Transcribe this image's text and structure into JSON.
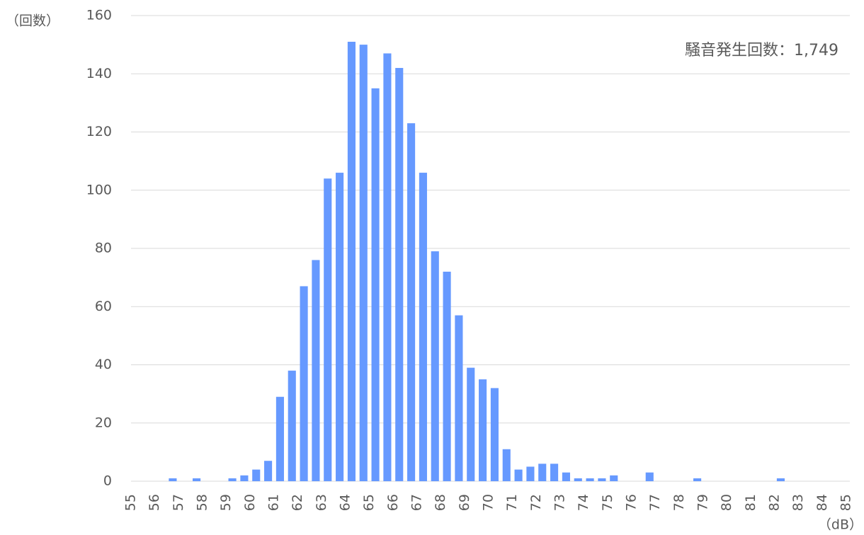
{
  "chart_data": {
    "type": "histogram",
    "y_label": "（回数）",
    "x_label": "（dB）",
    "annotation": "騒音発生回数：1,749",
    "bins": [
      55,
      55.5,
      56,
      56.5,
      57,
      57.5,
      58,
      58.5,
      59,
      59.5,
      60,
      60.5,
      61,
      61.5,
      62,
      62.5,
      63,
      63.5,
      64,
      64.5,
      65,
      65.5,
      66,
      66.5,
      67,
      67.5,
      68,
      68.5,
      69,
      69.5,
      70,
      70.5,
      71,
      71.5,
      72,
      72.5,
      73,
      73.5,
      74,
      74.5,
      75,
      75.5,
      76,
      76.5,
      77,
      77.5,
      78,
      78.5,
      79,
      79.5,
      80,
      80.5,
      81,
      81.5,
      82,
      82.5,
      83,
      83.5,
      84,
      84.5,
      85
    ],
    "values": [
      0,
      0,
      0,
      1,
      0,
      1,
      0,
      0,
      1,
      2,
      4,
      7,
      29,
      38,
      67,
      76,
      104,
      106,
      151,
      150,
      135,
      147,
      142,
      123,
      106,
      79,
      72,
      57,
      39,
      35,
      32,
      11,
      4,
      5,
      6,
      6,
      3,
      1,
      1,
      1,
      2,
      0,
      0,
      3,
      0,
      0,
      0,
      1,
      0,
      0,
      0,
      0,
      0,
      0,
      1,
      0,
      0,
      0,
      0,
      0
    ],
    "color": "#6699ff",
    "xlim": [
      55,
      85
    ],
    "xticks": [
      55,
      56,
      57,
      58,
      59,
      60,
      61,
      62,
      63,
      64,
      65,
      66,
      67,
      68,
      69,
      70,
      71,
      72,
      73,
      74,
      75,
      76,
      77,
      78,
      79,
      80,
      81,
      82,
      83,
      84,
      85
    ],
    "ylim": [
      0,
      160
    ],
    "yticks": [
      0,
      20,
      40,
      60,
      80,
      100,
      120,
      140,
      160
    ],
    "grid": true
  }
}
